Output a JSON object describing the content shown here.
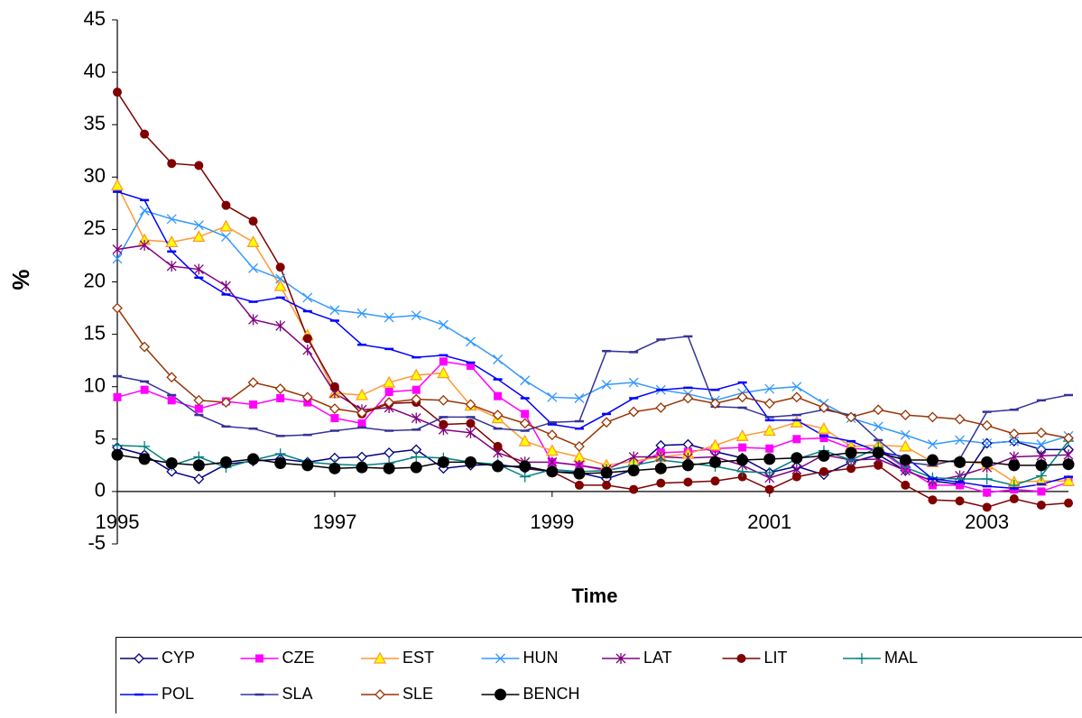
{
  "chart_data": {
    "type": "line",
    "x_label": "Time",
    "y_label": "%",
    "x": [
      1995,
      1995.25,
      1995.5,
      1995.75,
      1996,
      1996.25,
      1996.5,
      1996.75,
      1997,
      1997.25,
      1997.5,
      1997.75,
      1998,
      1998.25,
      1998.5,
      1998.75,
      1999,
      1999.25,
      1999.5,
      1999.75,
      2000,
      2000.25,
      2000.5,
      2000.75,
      2001,
      2001.25,
      2001.5,
      2001.75,
      2002,
      2002.25,
      2002.5,
      2002.75,
      2003,
      2003.25,
      2003.5,
      2003.75
    ],
    "xlim": [
      1995,
      2003.75
    ],
    "xticks": [
      1995,
      1997,
      1999,
      2001,
      2003
    ],
    "ylim": [
      -5,
      45
    ],
    "yticks": [
      -5,
      0,
      5,
      10,
      15,
      20,
      25,
      30,
      35,
      40,
      45
    ],
    "grid": false,
    "legend": "bottom",
    "series": [
      {
        "name": "CYP",
        "color": "#000080",
        "marker": "diamond",
        "values": [
          4.2,
          3.5,
          1.9,
          1.2,
          2.6,
          2.9,
          3.1,
          2.8,
          3.2,
          3.3,
          3.7,
          4.0,
          2.2,
          2.5,
          2.6,
          2.2,
          1.9,
          1.8,
          1.2,
          2.1,
          4.4,
          4.5,
          3.8,
          3.2,
          1.8,
          2.4,
          1.6,
          2.8,
          3.5,
          2.0,
          1.0,
          0.7,
          4.6,
          4.8,
          4.0,
          4.0
        ]
      },
      {
        "name": "CZE",
        "color": "#ff00ff",
        "marker": "square",
        "values": [
          9.0,
          9.7,
          8.7,
          7.9,
          8.6,
          8.3,
          8.9,
          8.5,
          7.0,
          6.5,
          9.5,
          9.7,
          12.4,
          12.0,
          9.1,
          7.4,
          2.8,
          2.5,
          2.0,
          2.5,
          3.7,
          3.8,
          4.1,
          4.2,
          4.1,
          5.0,
          5.1,
          4.1,
          4.0,
          2.2,
          0.6,
          0.6,
          -0.1,
          0.2,
          0.0,
          0.9
        ]
      },
      {
        "name": "EST",
        "color": "#ff9933",
        "marker": "triangle",
        "values": [
          29.2,
          24.0,
          23.8,
          24.3,
          25.3,
          23.8,
          19.6,
          14.9,
          9.4,
          9.2,
          10.4,
          11.1,
          11.3,
          8.2,
          7.0,
          4.8,
          3.9,
          3.3,
          2.5,
          2.9,
          3.3,
          3.6,
          4.4,
          5.3,
          5.8,
          6.6,
          6.0,
          4.3,
          4.4,
          4.3,
          2.8,
          2.9,
          2.6,
          0.9,
          1.0,
          1.0
        ]
      },
      {
        "name": "HUN",
        "color": "#3399ff",
        "marker": "cross",
        "values": [
          22.2,
          26.8,
          26.0,
          25.4,
          24.3,
          21.3,
          20.3,
          18.5,
          17.3,
          17.0,
          16.6,
          16.8,
          15.9,
          14.3,
          12.6,
          10.6,
          9.0,
          8.9,
          10.2,
          10.4,
          9.7,
          9.3,
          8.7,
          9.4,
          9.8,
          10.0,
          8.4,
          7.0,
          6.2,
          5.4,
          4.5,
          4.9,
          4.6,
          4.8,
          4.5,
          5.3
        ]
      },
      {
        "name": "LAT",
        "color": "#800080",
        "marker": "star",
        "values": [
          23.1,
          23.5,
          21.5,
          21.2,
          19.6,
          16.4,
          15.8,
          13.5,
          9.4,
          7.8,
          8.0,
          7.0,
          5.9,
          5.6,
          3.7,
          2.8,
          2.8,
          2.5,
          2.1,
          3.3,
          3.3,
          3.2,
          3.3,
          2.5,
          1.3,
          2.1,
          3.5,
          3.0,
          3.1,
          2.0,
          1.0,
          1.5,
          2.3,
          3.3,
          3.4,
          3.5
        ]
      },
      {
        "name": "LIT",
        "color": "#800000",
        "marker": "circle",
        "values": [
          38.1,
          34.1,
          31.3,
          31.1,
          27.3,
          25.8,
          21.4,
          14.6,
          10.0,
          7.4,
          8.4,
          8.5,
          6.4,
          6.5,
          4.3,
          2.3,
          1.9,
          0.6,
          0.6,
          0.2,
          0.8,
          0.9,
          1.0,
          1.4,
          0.2,
          1.4,
          1.9,
          2.2,
          2.5,
          0.6,
          -0.8,
          -0.9,
          -1.5,
          -0.7,
          -1.3,
          -1.1
        ]
      },
      {
        "name": "MAL",
        "color": "#008080",
        "marker": "plus",
        "values": [
          4.4,
          4.3,
          2.5,
          3.3,
          2.3,
          3.0,
          3.6,
          2.8,
          2.6,
          2.5,
          2.7,
          3.3,
          3.2,
          2.8,
          2.6,
          1.4,
          2.1,
          1.9,
          2.0,
          2.5,
          3.0,
          2.7,
          2.4,
          1.9,
          1.8,
          3.1,
          3.9,
          3.0,
          4.2,
          2.3,
          1.3,
          1.2,
          1.2,
          0.6,
          1.5,
          4.8
        ]
      },
      {
        "name": "POL",
        "color": "#0000ff",
        "marker": "dash",
        "values": [
          28.6,
          27.8,
          22.9,
          20.4,
          18.8,
          18.1,
          18.5,
          17.2,
          16.3,
          14.0,
          13.6,
          12.8,
          13.0,
          12.3,
          10.7,
          8.9,
          6.4,
          6.0,
          7.4,
          8.9,
          9.7,
          9.9,
          9.7,
          10.4,
          6.8,
          6.8,
          5.3,
          4.8,
          3.8,
          3.3,
          1.2,
          0.9,
          0.5,
          0.3,
          0.7,
          1.4
        ]
      },
      {
        "name": "SLA",
        "color": "#333399",
        "marker": "dash",
        "values": [
          11.0,
          10.5,
          9.2,
          7.3,
          6.2,
          6.0,
          5.3,
          5.4,
          5.8,
          6.1,
          5.8,
          5.9,
          7.1,
          7.1,
          6.0,
          5.8,
          6.6,
          6.7,
          13.4,
          13.3,
          14.5,
          14.8,
          8.1,
          8.0,
          7.1,
          7.3,
          7.8,
          7.3,
          4.9,
          2.8,
          2.5,
          3.1,
          7.6,
          7.8,
          8.7,
          9.2
        ]
      },
      {
        "name": "SLE",
        "color": "#993300",
        "marker": "diamond",
        "values": [
          17.5,
          13.8,
          10.9,
          8.7,
          8.5,
          10.4,
          9.8,
          9.0,
          7.9,
          7.5,
          8.5,
          8.8,
          8.7,
          8.3,
          7.3,
          6.5,
          5.4,
          4.3,
          6.6,
          7.6,
          8.0,
          8.9,
          8.4,
          9.0,
          8.4,
          9.0,
          8.0,
          7.1,
          7.8,
          7.3,
          7.1,
          6.9,
          6.3,
          5.5,
          5.6,
          5.1
        ]
      },
      {
        "name": "BENCH",
        "color": "#000000",
        "marker": "bigcircle",
        "values": [
          3.5,
          3.1,
          2.7,
          2.5,
          2.8,
          3.1,
          2.7,
          2.5,
          2.2,
          2.3,
          2.2,
          2.3,
          2.8,
          2.8,
          2.4,
          2.4,
          1.9,
          1.7,
          1.8,
          2.0,
          2.2,
          2.5,
          2.8,
          3.0,
          3.1,
          3.2,
          3.4,
          3.7,
          3.7,
          3.0,
          3.0,
          2.8,
          2.8,
          2.5,
          2.5,
          2.6
        ]
      }
    ]
  }
}
